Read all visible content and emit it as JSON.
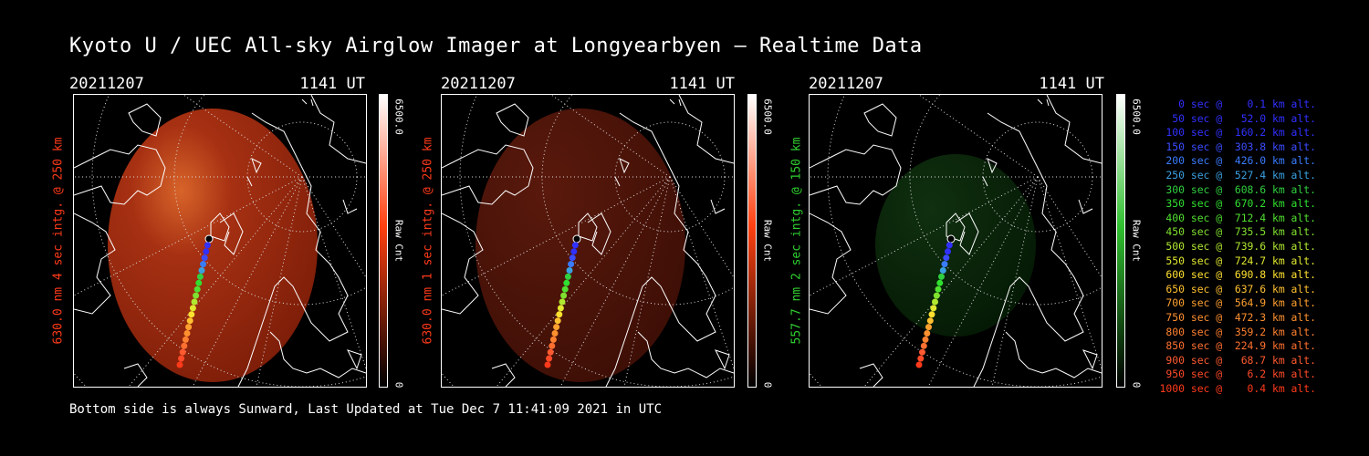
{
  "title": "Kyoto U / UEC All-sky Airglow Imager at Longyearbyen — Realtime Data",
  "footer": "Bottom side is always Sunward, Last Updated at Tue Dec  7 11:41:09 2021 in UTC",
  "colors": {
    "red": "#ff3a1a",
    "green": "#30d030",
    "blue": "#3a3aff",
    "white": "#ffffff"
  },
  "panels": [
    {
      "date": "20211207",
      "time": "1141 UT",
      "label": "630.0 nm 4 sec intg. @ 250 km",
      "label_color": "#ff3a1a",
      "cbar_max": "6500.0",
      "cbar_unit": "Raw Cnt",
      "cbar_min": "0",
      "tint": "red",
      "glow": 1.0
    },
    {
      "date": "20211207",
      "time": "1141 UT",
      "label": "630.0 nm 1 sec intg. @ 250 km",
      "label_color": "#ff3a1a",
      "cbar_max": "6500.0",
      "cbar_unit": "Raw Cnt",
      "cbar_min": "0",
      "tint": "red",
      "glow": 0.35
    },
    {
      "date": "20211207",
      "time": "1141 UT",
      "label": "557.7 nm 2 sec intg. @ 150 km",
      "label_color": "#30d030",
      "cbar_max": "6500.0",
      "cbar_unit": "Raw Cnt",
      "cbar_min": "0",
      "tint": "green",
      "glow": 0.4
    }
  ],
  "legend": [
    {
      "text": "   0 sec @    0.1 km alt.",
      "color": "#3030ff"
    },
    {
      "text": "  50 sec @   52.0 km alt.",
      "color": "#3030ff"
    },
    {
      "text": " 100 sec @  160.2 km alt.",
      "color": "#3030ff"
    },
    {
      "text": " 150 sec @  303.8 km alt.",
      "color": "#3a4cff"
    },
    {
      "text": " 200 sec @  426.0 km alt.",
      "color": "#3a7cff"
    },
    {
      "text": " 250 sec @  527.4 km alt.",
      "color": "#3aa0e0"
    },
    {
      "text": " 300 sec @  608.6 km alt.",
      "color": "#30d040"
    },
    {
      "text": " 350 sec @  670.2 km alt.",
      "color": "#30e030"
    },
    {
      "text": " 400 sec @  712.4 km alt.",
      "color": "#50e030"
    },
    {
      "text": " 450 sec @  735.5 km alt.",
      "color": "#80e030"
    },
    {
      "text": " 500 sec @  739.6 km alt.",
      "color": "#b0e830"
    },
    {
      "text": " 550 sec @  724.7 km alt.",
      "color": "#e0e830"
    },
    {
      "text": " 600 sec @  690.8 km alt.",
      "color": "#ffe030"
    },
    {
      "text": " 650 sec @  637.6 km alt.",
      "color": "#ffc030"
    },
    {
      "text": " 700 sec @  564.9 km alt.",
      "color": "#ffa030"
    },
    {
      "text": " 750 sec @  472.3 km alt.",
      "color": "#ff9030"
    },
    {
      "text": " 800 sec @  359.2 km alt.",
      "color": "#ff8030"
    },
    {
      "text": " 850 sec @  224.9 km alt.",
      "color": "#ff7030"
    },
    {
      "text": " 900 sec @   68.7 km alt.",
      "color": "#ff5a30"
    },
    {
      "text": " 950 sec @    6.2 km alt.",
      "color": "#ff4a28"
    },
    {
      "text": "1000 sec @    0.4 km alt.",
      "color": "#ff3a1a"
    }
  ]
}
